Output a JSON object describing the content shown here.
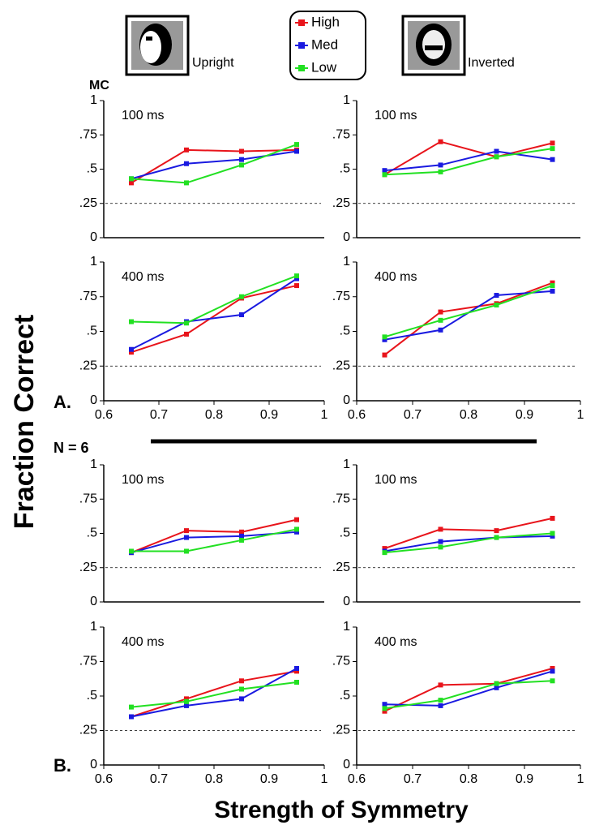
{
  "figure": {
    "fraction_label": "Fraction Correct",
    "x_label": "Strength of Symmetry",
    "mc": "MC",
    "n": "N = 6",
    "part_a": "A.",
    "part_b": "B.",
    "upright": "Upright",
    "inverted": "Inverted"
  },
  "chart_data": [
    {
      "type": "line",
      "annotation": "100 ms",
      "x": [
        0.65,
        0.75,
        0.85,
        0.95
      ],
      "xlim": [
        0.6,
        1
      ],
      "ylim": [
        0,
        1
      ],
      "yticks": [
        0,
        {
          "value": 0.25,
          "label": ".25"
        },
        {
          "value": 0.5,
          "label": ".5"
        },
        {
          "value": 0.75,
          "label": ".75"
        },
        1
      ],
      "reference_line": 0.25,
      "series": [
        {
          "name": "High",
          "color": "#e8141b",
          "values": [
            0.4,
            0.64,
            0.63,
            0.64
          ]
        },
        {
          "name": "Med",
          "color": "#1a1ae0",
          "values": [
            0.43,
            0.54,
            0.57,
            0.63
          ]
        },
        {
          "name": "Low",
          "color": "#22e022",
          "values": [
            0.43,
            0.4,
            0.53,
            0.68
          ]
        }
      ]
    },
    {
      "type": "line",
      "annotation": "100 ms",
      "x": [
        0.65,
        0.75,
        0.85,
        0.95
      ],
      "xlim": [
        0.6,
        1
      ],
      "ylim": [
        0,
        1
      ],
      "yticks": [
        0,
        {
          "value": 0.25,
          "label": ".25"
        },
        {
          "value": 0.5,
          "label": ".5"
        },
        {
          "value": 0.75,
          "label": ".75"
        },
        1
      ],
      "reference_line": 0.25,
      "series": [
        {
          "name": "High",
          "color": "#e8141b",
          "values": [
            0.46,
            0.7,
            0.59,
            0.69
          ]
        },
        {
          "name": "Med",
          "color": "#1a1ae0",
          "values": [
            0.49,
            0.53,
            0.63,
            0.57
          ]
        },
        {
          "name": "Low",
          "color": "#22e022",
          "values": [
            0.46,
            0.48,
            0.59,
            0.65
          ]
        }
      ]
    },
    {
      "type": "line",
      "annotation": "400 ms",
      "x": [
        0.65,
        0.75,
        0.85,
        0.95
      ],
      "xlim": [
        0.6,
        1
      ],
      "ylim": [
        0,
        1
      ],
      "xticks": [
        0.6,
        0.7,
        0.8,
        0.9,
        1
      ],
      "yticks": [
        0,
        {
          "value": 0.25,
          "label": ".25"
        },
        {
          "value": 0.5,
          "label": ".5"
        },
        {
          "value": 0.75,
          "label": ".75"
        },
        1
      ],
      "reference_line": 0.25,
      "series": [
        {
          "name": "High",
          "color": "#e8141b",
          "values": [
            0.35,
            0.48,
            0.74,
            0.83
          ]
        },
        {
          "name": "Med",
          "color": "#1a1ae0",
          "values": [
            0.37,
            0.57,
            0.62,
            0.88
          ]
        },
        {
          "name": "Low",
          "color": "#22e022",
          "values": [
            0.57,
            0.56,
            0.75,
            0.9
          ]
        }
      ]
    },
    {
      "type": "line",
      "annotation": "400 ms",
      "x": [
        0.65,
        0.75,
        0.85,
        0.95
      ],
      "xlim": [
        0.6,
        1
      ],
      "ylim": [
        0,
        1
      ],
      "xticks": [
        0.6,
        0.7,
        0.8,
        0.9,
        1
      ],
      "yticks": [
        0,
        {
          "value": 0.25,
          "label": ".25"
        },
        {
          "value": 0.5,
          "label": ".5"
        },
        {
          "value": 0.75,
          "label": ".75"
        },
        1
      ],
      "reference_line": 0.25,
      "series": [
        {
          "name": "High",
          "color": "#e8141b",
          "values": [
            0.33,
            0.64,
            0.7,
            0.85
          ]
        },
        {
          "name": "Med",
          "color": "#1a1ae0",
          "values": [
            0.44,
            0.51,
            0.76,
            0.79
          ]
        },
        {
          "name": "Low",
          "color": "#22e022",
          "values": [
            0.46,
            0.58,
            0.69,
            0.83
          ]
        }
      ]
    },
    {
      "type": "line",
      "annotation": "100 ms",
      "x": [
        0.65,
        0.75,
        0.85,
        0.95
      ],
      "xlim": [
        0.6,
        1
      ],
      "ylim": [
        0,
        1
      ],
      "yticks": [
        0,
        {
          "value": 0.25,
          "label": ".25"
        },
        {
          "value": 0.5,
          "label": ".5"
        },
        {
          "value": 0.75,
          "label": ".75"
        },
        1
      ],
      "reference_line": 0.25,
      "series": [
        {
          "name": "High",
          "color": "#e8141b",
          "values": [
            0.36,
            0.52,
            0.51,
            0.6
          ]
        },
        {
          "name": "Med",
          "color": "#1a1ae0",
          "values": [
            0.36,
            0.47,
            0.48,
            0.51
          ]
        },
        {
          "name": "Low",
          "color": "#22e022",
          "values": [
            0.37,
            0.37,
            0.45,
            0.53
          ]
        }
      ]
    },
    {
      "type": "line",
      "annotation": "100 ms",
      "x": [
        0.65,
        0.75,
        0.85,
        0.95
      ],
      "xlim": [
        0.6,
        1
      ],
      "ylim": [
        0,
        1
      ],
      "yticks": [
        0,
        {
          "value": 0.25,
          "label": ".25"
        },
        {
          "value": 0.5,
          "label": ".5"
        },
        {
          "value": 0.75,
          "label": ".75"
        },
        1
      ],
      "reference_line": 0.25,
      "series": [
        {
          "name": "High",
          "color": "#e8141b",
          "values": [
            0.39,
            0.53,
            0.52,
            0.61
          ]
        },
        {
          "name": "Med",
          "color": "#1a1ae0",
          "values": [
            0.37,
            0.44,
            0.47,
            0.48
          ]
        },
        {
          "name": "Low",
          "color": "#22e022",
          "values": [
            0.36,
            0.4,
            0.47,
            0.5
          ]
        }
      ]
    },
    {
      "type": "line",
      "annotation": "400 ms",
      "x": [
        0.65,
        0.75,
        0.85,
        0.95
      ],
      "xlim": [
        0.6,
        1
      ],
      "ylim": [
        0,
        1
      ],
      "xticks": [
        0.6,
        0.7,
        0.8,
        0.9,
        1
      ],
      "yticks": [
        0,
        {
          "value": 0.25,
          "label": ".25"
        },
        {
          "value": 0.5,
          "label": ".5"
        },
        {
          "value": 0.75,
          "label": ".75"
        },
        1
      ],
      "reference_line": 0.25,
      "series": [
        {
          "name": "High",
          "color": "#e8141b",
          "values": [
            0.35,
            0.48,
            0.61,
            0.68
          ]
        },
        {
          "name": "Med",
          "color": "#1a1ae0",
          "values": [
            0.35,
            0.43,
            0.48,
            0.7
          ]
        },
        {
          "name": "Low",
          "color": "#22e022",
          "values": [
            0.42,
            0.46,
            0.55,
            0.6
          ]
        }
      ]
    },
    {
      "type": "line",
      "annotation": "400 ms",
      "x": [
        0.65,
        0.75,
        0.85,
        0.95
      ],
      "xlim": [
        0.6,
        1
      ],
      "ylim": [
        0,
        1
      ],
      "xticks": [
        0.6,
        0.7,
        0.8,
        0.9,
        1
      ],
      "yticks": [
        0,
        {
          "value": 0.25,
          "label": ".25"
        },
        {
          "value": 0.5,
          "label": ".5"
        },
        {
          "value": 0.75,
          "label": ".75"
        },
        1
      ],
      "reference_line": 0.25,
      "series": [
        {
          "name": "High",
          "color": "#e8141b",
          "values": [
            0.39,
            0.58,
            0.59,
            0.7
          ]
        },
        {
          "name": "Med",
          "color": "#1a1ae0",
          "values": [
            0.44,
            0.43,
            0.56,
            0.68
          ]
        },
        {
          "name": "Low",
          "color": "#22e022",
          "values": [
            0.41,
            0.47,
            0.59,
            0.61
          ]
        }
      ]
    }
  ]
}
